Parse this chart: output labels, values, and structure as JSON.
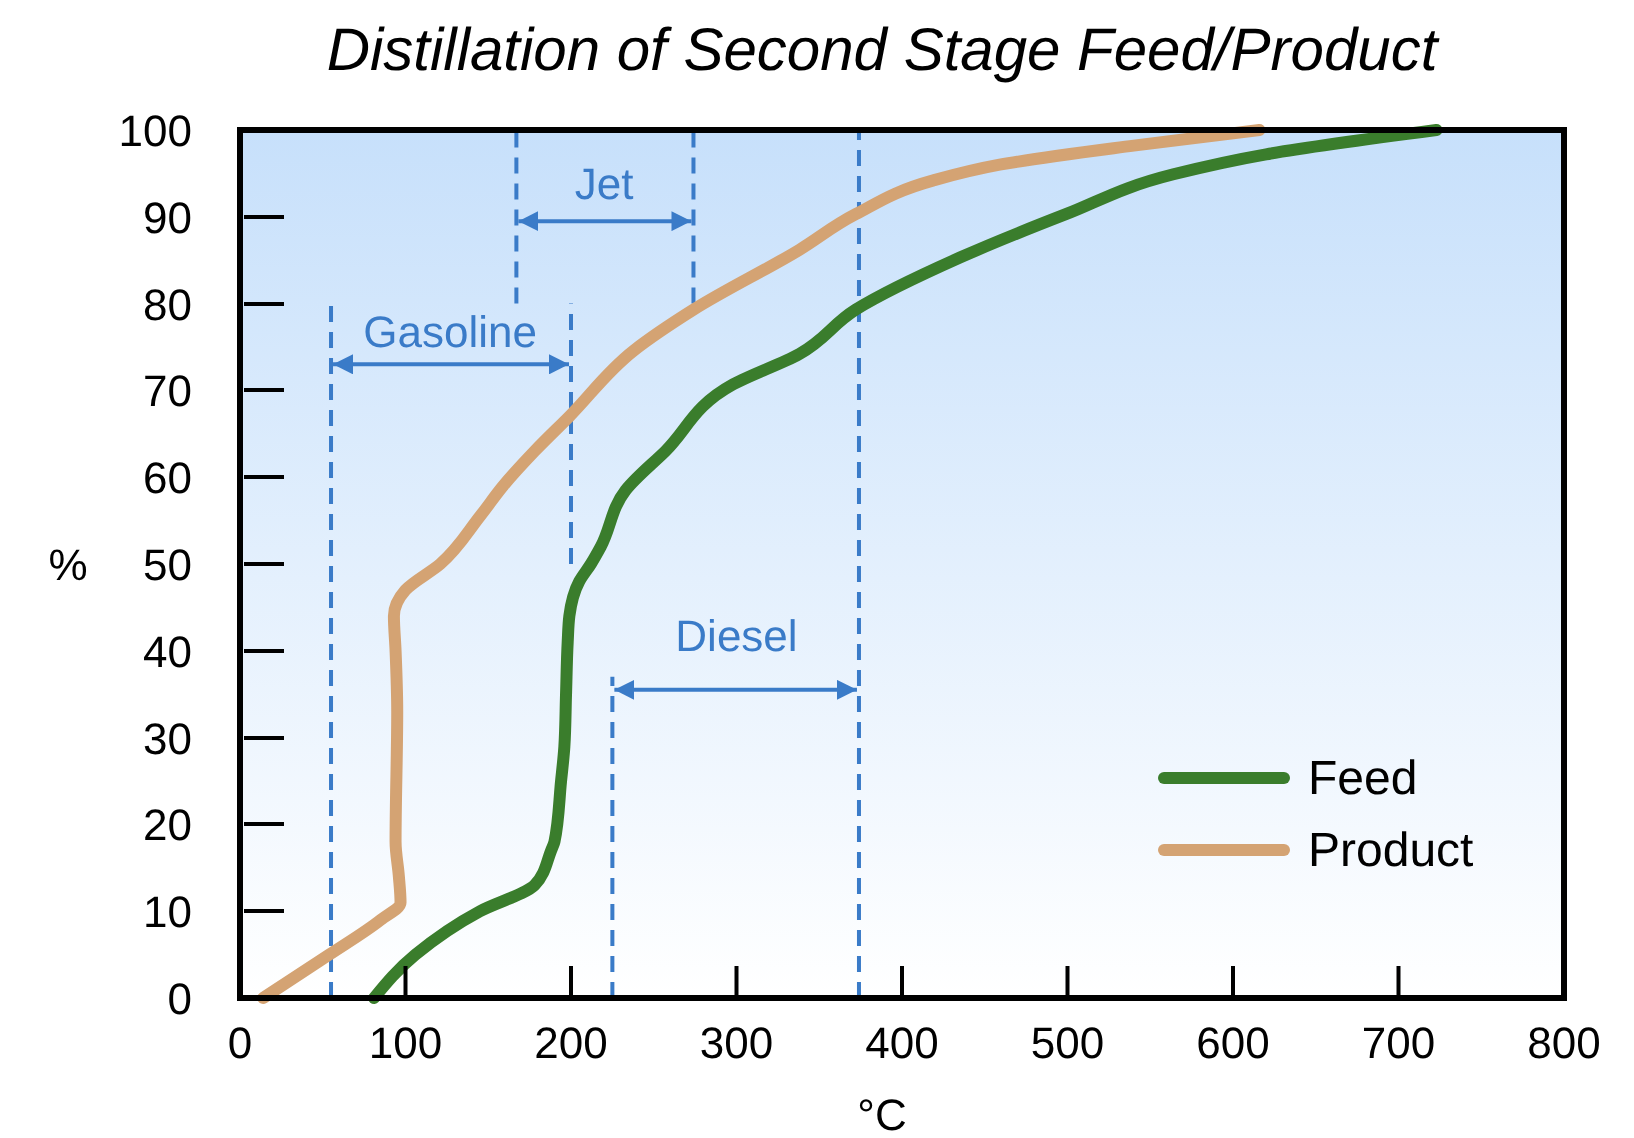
{
  "chart_data": {
    "type": "line",
    "title": "Distillation of Second Stage Feed/Product",
    "xlabel": "°C",
    "ylabel": "%",
    "xlim": [
      0,
      800
    ],
    "xticks": [
      0,
      100,
      200,
      300,
      400,
      500,
      600,
      700,
      800
    ],
    "ylim": [
      0,
      100
    ],
    "yticks": [
      0,
      10,
      20,
      30,
      40,
      50,
      60,
      70,
      80,
      90,
      100
    ],
    "grid": false,
    "legend": "bottom right",
    "line_style": "solid",
    "marker": "none",
    "series": [
      {
        "name": "Feed",
        "color": "#3a7d2c",
        "x": [
          81,
          106,
          145,
          178,
          188,
          190,
          194,
          196,
          197,
          198,
          199,
          205,
          212,
          218,
          233,
          257,
          298,
          338,
          372,
          435,
          499,
          564,
          620,
          723
        ],
        "values": [
          0,
          5,
          10,
          13,
          17,
          18,
          25,
          29,
          35,
          41,
          44,
          48,
          50,
          52,
          58.5,
          63,
          70.7,
          74.2,
          79.3,
          85.3,
          90.3,
          94.9,
          97.2,
          100
        ]
      },
      {
        "name": "Product",
        "color": "#d4a373",
        "x": [
          14,
          54,
          85,
          97,
          96,
          94,
          95,
          94,
          93,
          100,
          121,
          145,
          159,
          178,
          199,
          238,
          274,
          338,
          372,
          419,
          459,
          540,
          616
        ],
        "values": [
          0,
          5,
          9,
          11,
          14,
          18,
          33,
          40,
          44,
          47,
          50,
          55.5,
          59,
          63,
          67,
          74.6,
          79.3,
          86.2,
          90.3,
          94.2,
          96,
          98.2,
          100
        ]
      }
    ],
    "ref_lines": [
      {
        "axis": "x",
        "value": 55,
        "color": "#3a7bc8",
        "line_style": "dashed"
      },
      {
        "axis": "x",
        "value": 200,
        "color": "#3a7bc8",
        "line_style": "dashed"
      },
      {
        "axis": "x",
        "value": 167,
        "color": "#3a7bc8",
        "line_style": "dashed"
      },
      {
        "axis": "x",
        "value": 274,
        "color": "#3a7bc8",
        "line_style": "dashed"
      },
      {
        "axis": "x",
        "value": 225,
        "color": "#3a7bc8",
        "line_style": "dashed"
      },
      {
        "axis": "x",
        "value": 374,
        "color": "#3a7bc8",
        "line_style": "dashed"
      }
    ],
    "annotations": [
      "Gasoline",
      "Jet",
      "Diesel"
    ]
  }
}
